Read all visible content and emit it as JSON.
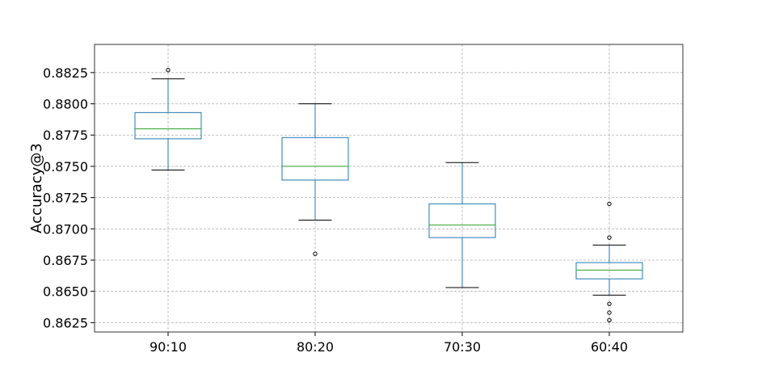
{
  "chart_data": {
    "type": "box",
    "title": "",
    "xlabel": "",
    "ylabel": "Accuracy@3",
    "ylim": [
      0.86175,
      0.88475
    ],
    "yticks": [
      "0.8625",
      "0.8650",
      "0.8675",
      "0.8700",
      "0.8725",
      "0.8750",
      "0.8775",
      "0.8800",
      "0.8825"
    ],
    "categories": [
      "90:10",
      "80:20",
      "70:30",
      "60:40"
    ],
    "grid": true,
    "colors": {
      "box": "#1f77b4",
      "median": "#2ca02c",
      "whisker": "#1f77b4",
      "cap": "#000000",
      "grid": "#b0b0b0"
    },
    "boxes": [
      {
        "category": "90:10",
        "whislo": 0.8747,
        "q1": 0.8772,
        "med": 0.878,
        "q3": 0.8793,
        "whishi": 0.882,
        "fliers": [
          0.8827
        ]
      },
      {
        "category": "80:20",
        "whislo": 0.8707,
        "q1": 0.8739,
        "med": 0.875,
        "q3": 0.8773,
        "whishi": 0.88,
        "fliers": [
          0.868
        ]
      },
      {
        "category": "70:30",
        "whislo": 0.8653,
        "q1": 0.8693,
        "med": 0.8703,
        "q3": 0.872,
        "whishi": 0.8753,
        "fliers": []
      },
      {
        "category": "60:40",
        "whislo": 0.8647,
        "q1": 0.866,
        "med": 0.8667,
        "q3": 0.8673,
        "whishi": 0.8687,
        "fliers": [
          0.872,
          0.8693,
          0.864,
          0.8633,
          0.8627
        ]
      }
    ]
  }
}
